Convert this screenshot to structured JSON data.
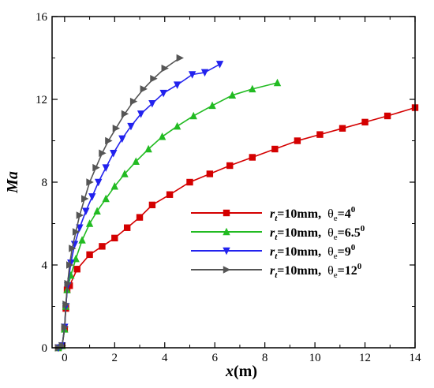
{
  "chart_data": {
    "type": "line",
    "xlabel_var": "x",
    "xlabel_unit": "(m)",
    "ylabel": "Ma",
    "xlim": [
      -0.5,
      14
    ],
    "ylim": [
      0,
      16
    ],
    "x_ticks": [
      0,
      2,
      4,
      6,
      8,
      10,
      12,
      14
    ],
    "y_ticks": [
      0,
      4,
      8,
      12,
      16
    ],
    "grid": false,
    "legend_position": "center-right",
    "series": [
      {
        "legend": {
          "r": "r",
          "r_sub": "t",
          "eq": "=10mm,",
          "theta": "θ",
          "theta_sub": "e",
          "val": "=4",
          "sup": "0"
        },
        "color": "#d40000",
        "marker": "square",
        "points": [
          [
            -0.25,
            0.0
          ],
          [
            -0.1,
            0.1
          ],
          [
            0.0,
            0.9
          ],
          [
            0.05,
            1.9
          ],
          [
            0.1,
            2.8
          ],
          [
            0.2,
            3.0
          ],
          [
            0.5,
            3.8
          ],
          [
            1.0,
            4.5
          ],
          [
            1.5,
            4.9
          ],
          [
            2.0,
            5.3
          ],
          [
            2.5,
            5.8
          ],
          [
            3.0,
            6.3
          ],
          [
            3.5,
            6.9
          ],
          [
            4.2,
            7.4
          ],
          [
            5.0,
            8.0
          ],
          [
            5.8,
            8.4
          ],
          [
            6.6,
            8.8
          ],
          [
            7.5,
            9.2
          ],
          [
            8.4,
            9.6
          ],
          [
            9.3,
            10.0
          ],
          [
            10.2,
            10.3
          ],
          [
            11.1,
            10.6
          ],
          [
            12.0,
            10.9
          ],
          [
            12.9,
            11.2
          ],
          [
            14.0,
            11.6
          ]
        ]
      },
      {
        "legend": {
          "r": "r",
          "r_sub": "t",
          "eq": "=10mm,",
          "theta": "θ",
          "theta_sub": "e",
          "val": "=6.5",
          "sup": "0"
        },
        "color": "#22bb22",
        "marker": "triangle-up",
        "points": [
          [
            -0.25,
            0.0
          ],
          [
            -0.1,
            0.1
          ],
          [
            0.0,
            0.9
          ],
          [
            0.05,
            2.0
          ],
          [
            0.1,
            2.8
          ],
          [
            0.25,
            3.5
          ],
          [
            0.45,
            4.3
          ],
          [
            0.7,
            5.2
          ],
          [
            1.0,
            6.0
          ],
          [
            1.3,
            6.6
          ],
          [
            1.65,
            7.2
          ],
          [
            2.0,
            7.8
          ],
          [
            2.4,
            8.4
          ],
          [
            2.85,
            9.0
          ],
          [
            3.35,
            9.6
          ],
          [
            3.9,
            10.2
          ],
          [
            4.5,
            10.7
          ],
          [
            5.15,
            11.2
          ],
          [
            5.9,
            11.7
          ],
          [
            6.7,
            12.2
          ],
          [
            7.5,
            12.5
          ],
          [
            8.5,
            12.8
          ]
        ]
      },
      {
        "legend": {
          "r": "r",
          "r_sub": "t",
          "eq": "=10mm,",
          "theta": "θ",
          "theta_sub": "e",
          "val": "=9",
          "sup": "0"
        },
        "color": "#2222ee",
        "marker": "triangle-down",
        "points": [
          [
            -0.25,
            0.0
          ],
          [
            -0.1,
            0.1
          ],
          [
            0.0,
            1.0
          ],
          [
            0.05,
            2.0
          ],
          [
            0.12,
            3.0
          ],
          [
            0.25,
            4.1
          ],
          [
            0.4,
            5.0
          ],
          [
            0.6,
            5.8
          ],
          [
            0.85,
            6.6
          ],
          [
            1.1,
            7.3
          ],
          [
            1.35,
            8.0
          ],
          [
            1.65,
            8.7
          ],
          [
            1.95,
            9.4
          ],
          [
            2.3,
            10.1
          ],
          [
            2.65,
            10.7
          ],
          [
            3.05,
            11.3
          ],
          [
            3.5,
            11.8
          ],
          [
            3.95,
            12.3
          ],
          [
            4.5,
            12.7
          ],
          [
            5.1,
            13.2
          ],
          [
            5.6,
            13.3
          ],
          [
            6.2,
            13.7
          ]
        ]
      },
      {
        "legend": {
          "r": "r",
          "r_sub": "t",
          "eq": "=10mm,",
          "theta": "θ",
          "theta_sub": "e",
          "val": "=12",
          "sup": "0"
        },
        "color": "#555555",
        "marker": "triangle-right",
        "points": [
          [
            -0.25,
            0.0
          ],
          [
            -0.1,
            0.1
          ],
          [
            0.0,
            1.0
          ],
          [
            0.05,
            2.1
          ],
          [
            0.12,
            3.1
          ],
          [
            0.2,
            4.0
          ],
          [
            0.3,
            4.8
          ],
          [
            0.45,
            5.6
          ],
          [
            0.6,
            6.4
          ],
          [
            0.8,
            7.2
          ],
          [
            1.0,
            8.0
          ],
          [
            1.25,
            8.7
          ],
          [
            1.5,
            9.4
          ],
          [
            1.75,
            10.0
          ],
          [
            2.05,
            10.6
          ],
          [
            2.4,
            11.3
          ],
          [
            2.75,
            11.9
          ],
          [
            3.15,
            12.5
          ],
          [
            3.55,
            13.0
          ],
          [
            4.0,
            13.5
          ],
          [
            4.6,
            14.0
          ]
        ]
      }
    ]
  }
}
